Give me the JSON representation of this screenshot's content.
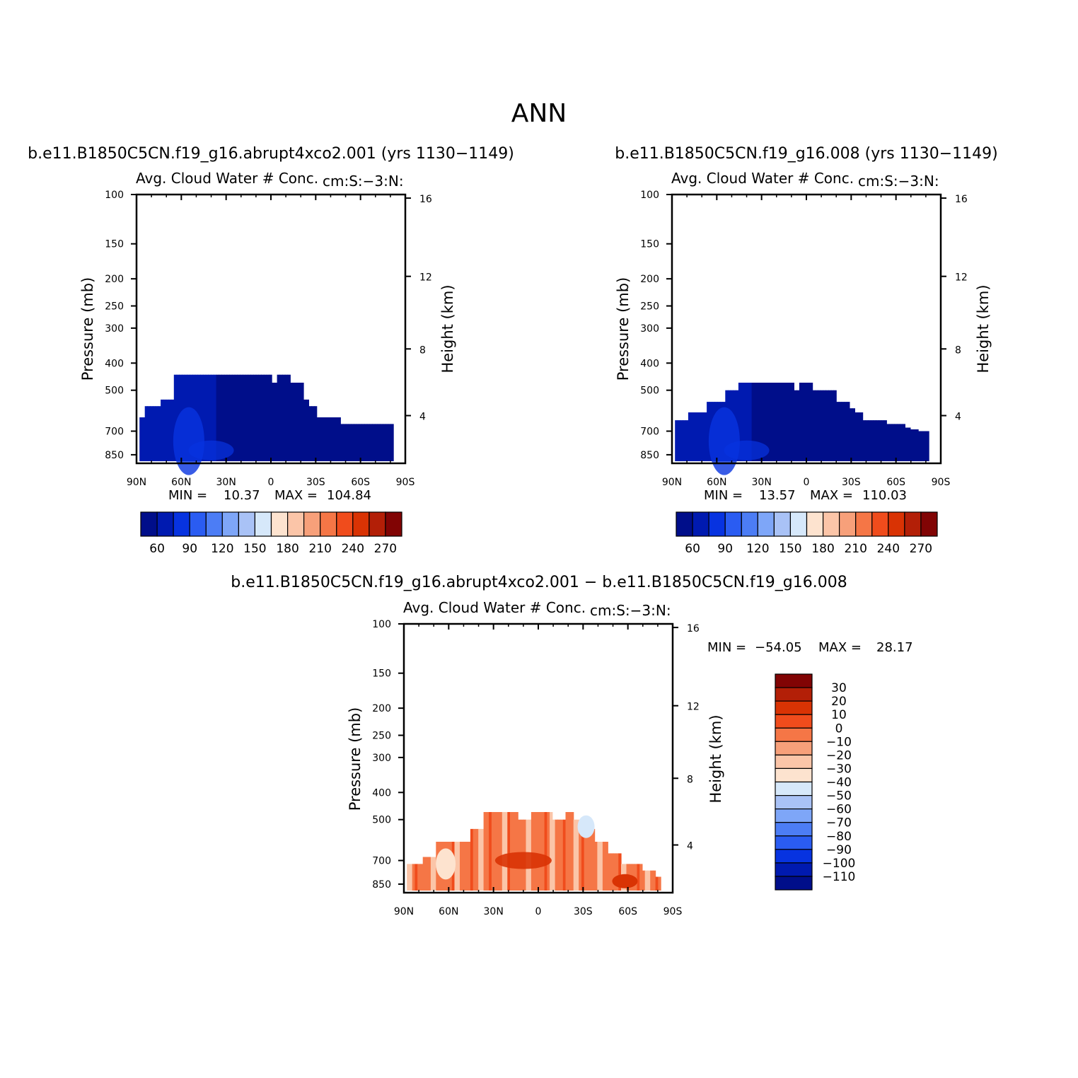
{
  "header": {
    "season": "ANN"
  },
  "chart_data": [
    {
      "type": "heatmap",
      "title": "b.e11.B1850C5CN.f19_g16.abrupt4xco2.001 (yrs 1130−1149)",
      "subtitle_left": "Avg. Cloud Water # Conc.",
      "subtitle_right": "cm:S:−3:N:",
      "ylabel": "Pressure (mb)",
      "ylabel_right": "Height (km)",
      "xlim": [
        90,
        -90
      ],
      "x_ticks": [
        "90N",
        "60N",
        "30N",
        "0",
        "30S",
        "60S",
        "90S"
      ],
      "y_scale": "log",
      "ylim": [
        100,
        900
      ],
      "y_ticks": [
        "100",
        "150",
        "200",
        "250",
        "300",
        "400",
        "500",
        "700",
        "850"
      ],
      "y_right_ticks": [
        "16",
        "12",
        "8",
        "4"
      ],
      "min_label": "MIN =",
      "min_value": "10.37",
      "max_label": "MAX =",
      "max_value": "104.84",
      "colorbar": {
        "orientation": "horizontal",
        "colors": [
          "#000e8a",
          "#001ab0",
          "#0733e0",
          "#2a5cf2",
          "#4c7df5",
          "#7ea6f8",
          "#a9c2f6",
          "#d6e8fa",
          "#fde3cf",
          "#fbc5a8",
          "#f7a07a",
          "#f57646",
          "#f04c1c",
          "#d93304",
          "#b31f07",
          "#810404"
        ],
        "labels": [
          "60",
          "90",
          "120",
          "150",
          "180",
          "210",
          "240",
          "270"
        ]
      },
      "cloud_top_pressure": [
        625,
        625,
        570,
        570,
        570,
        570,
        570,
        570,
        540,
        540,
        540,
        540,
        540,
        440,
        440,
        440,
        440,
        440,
        440,
        440,
        440,
        440,
        440,
        440,
        440,
        440,
        440,
        440,
        440,
        440,
        440,
        440,
        440,
        440,
        440,
        440,
        440,
        440,
        440,
        440,
        440,
        440,
        440,
        440,
        440,
        440,
        440,
        440,
        440,
        440,
        440,
        470,
        470,
        440,
        440,
        440,
        440,
        440,
        470,
        470,
        470,
        470,
        470,
        540,
        540,
        540,
        570,
        570,
        570,
        625,
        625,
        625,
        625,
        625,
        625,
        625,
        625,
        625,
        660,
        660,
        660,
        660,
        660,
        660,
        660,
        660,
        660,
        660,
        660,
        660,
        660,
        660,
        660,
        660,
        660,
        660,
        660,
        660,
        660
      ],
      "cloud_edge_lat": [
        -82,
        88
      ]
    },
    {
      "type": "heatmap",
      "title": "b.e11.B1850C5CN.f19_g16.008 (yrs 1130−1149)",
      "subtitle_left": "Avg. Cloud Water # Conc.",
      "subtitle_right": "cm:S:−3:N:",
      "ylabel": "Pressure (mb)",
      "ylabel_right": "Height (km)",
      "xlim": [
        90,
        -90
      ],
      "x_ticks": [
        "90N",
        "60N",
        "30N",
        "0",
        "30S",
        "60S",
        "90S"
      ],
      "y_scale": "log",
      "ylim": [
        100,
        900
      ],
      "y_ticks": [
        "100",
        "150",
        "200",
        "250",
        "300",
        "400",
        "500",
        "700",
        "850"
      ],
      "y_right_ticks": [
        "16",
        "12",
        "8",
        "4"
      ],
      "min_label": "MIN =",
      "min_value": "13.57",
      "max_label": "MAX =",
      "max_value": "110.03",
      "colorbar": {
        "orientation": "horizontal",
        "colors": [
          "#000e8a",
          "#001ab0",
          "#0733e0",
          "#2a5cf2",
          "#4c7df5",
          "#7ea6f8",
          "#a9c2f6",
          "#d6e8fa",
          "#fde3cf",
          "#fbc5a8",
          "#f7a07a",
          "#f57646",
          "#f04c1c",
          "#d93304",
          "#b31f07",
          "#810404"
        ],
        "labels": [
          "60",
          "90",
          "120",
          "150",
          "180",
          "210",
          "240",
          "270"
        ]
      },
      "cloud_edge_lat": [
        -82,
        88
      ]
    },
    {
      "type": "heatmap",
      "title": "b.e11.B1850C5CN.f19_g16.abrupt4xco2.001 − b.e11.B1850C5CN.f19_g16.008",
      "subtitle_left": "Avg. Cloud Water # Conc.",
      "subtitle_right": "cm:S:−3:N:",
      "ylabel": "Pressure (mb)",
      "ylabel_right": "Height (km)",
      "xlim": [
        90,
        -90
      ],
      "x_ticks": [
        "90N",
        "60N",
        "30N",
        "0",
        "30S",
        "60S",
        "90S"
      ],
      "y_scale": "log",
      "ylim": [
        100,
        900
      ],
      "y_ticks": [
        "100",
        "150",
        "200",
        "250",
        "300",
        "400",
        "500",
        "700",
        "850"
      ],
      "y_right_ticks": [
        "16",
        "12",
        "8",
        "4"
      ],
      "min_label": "MIN =",
      "min_value": "−54.05",
      "max_label": "MAX =",
      "max_value": "28.17",
      "colorbar": {
        "orientation": "vertical",
        "colors": [
          "#810404",
          "#b31f07",
          "#d93304",
          "#f04c1c",
          "#f57646",
          "#f7a07a",
          "#fbc5a8",
          "#fde3cf",
          "#d6e8fa",
          "#a9c2f6",
          "#7ea6f8",
          "#4c7df5",
          "#2a5cf2",
          "#0733e0",
          "#001ab0",
          "#000e8a"
        ],
        "labels": [
          "30",
          "20",
          "10",
          "0",
          "−10",
          "−20",
          "−30",
          "−40",
          "−50",
          "−60",
          "−70",
          "−80",
          "−90",
          "−100",
          "−110"
        ]
      }
    }
  ]
}
